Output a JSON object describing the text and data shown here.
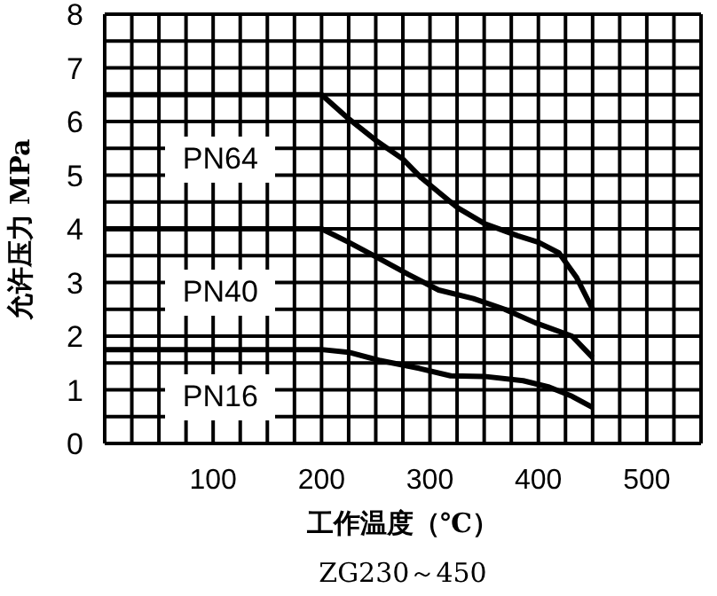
{
  "chart_data": {
    "type": "line",
    "xlabel": "工作温度（℃）",
    "ylabel": "允许压力 MPa",
    "annotations": [
      "ZG230～450"
    ],
    "xlim": [
      0,
      550
    ],
    "xticks": [
      {
        "value": 0,
        "label": null
      },
      {
        "value": 25,
        "label": null
      },
      {
        "value": 50,
        "label": null
      },
      {
        "value": 75,
        "label": null
      },
      100,
      {
        "value": 125,
        "label": null
      },
      {
        "value": 150,
        "label": null
      },
      {
        "value": 175,
        "label": null
      },
      200,
      {
        "value": 225,
        "label": null
      },
      {
        "value": 250,
        "label": null
      },
      {
        "value": 275,
        "label": null
      },
      300,
      {
        "value": 325,
        "label": null
      },
      {
        "value": 350,
        "label": null
      },
      {
        "value": 375,
        "label": null
      },
      400,
      {
        "value": 425,
        "label": null
      },
      {
        "value": 450,
        "label": null
      },
      {
        "value": 475,
        "label": null
      },
      500,
      {
        "value": 525,
        "label": null
      },
      {
        "value": 550,
        "label": null
      }
    ],
    "ylim": [
      0,
      8
    ],
    "yticks": [
      0,
      {
        "value": 0.5,
        "label": null
      },
      1,
      {
        "value": 1.5,
        "label": null
      },
      2,
      {
        "value": 2.5,
        "label": null
      },
      3,
      {
        "value": 3.5,
        "label": null
      },
      4,
      {
        "value": 4.5,
        "label": null
      },
      5,
      {
        "value": 5.5,
        "label": null
      },
      6,
      {
        "value": 6.5,
        "label": null
      },
      7,
      {
        "value": 7.5,
        "label": null
      },
      8
    ],
    "grid": true,
    "marker": "none",
    "line_style": "solid",
    "series": [
      {
        "name": "PN64",
        "color": "#000000",
        "x": [
          0,
          200,
          225,
          250,
          275,
          292,
          325,
          350,
          381,
          400,
          419,
          435,
          450
        ],
        "values": [
          6.5,
          6.5,
          6.05,
          5.65,
          5.3,
          4.95,
          4.4,
          4.1,
          3.87,
          3.75,
          3.55,
          3.1,
          2.5
        ]
      },
      {
        "name": "PN40",
        "color": "#000000",
        "x": [
          0,
          200,
          225,
          253,
          280,
          308,
          340,
          369,
          397,
          431,
          450
        ],
        "values": [
          4.0,
          4.0,
          3.75,
          3.45,
          3.15,
          2.86,
          2.7,
          2.5,
          2.25,
          2.0,
          1.6
        ]
      },
      {
        "name": "PN16",
        "color": "#000000",
        "x": [
          0,
          200,
          225,
          253,
          290,
          319,
          350,
          386,
          410,
          431,
          450
        ],
        "values": [
          1.75,
          1.75,
          1.7,
          1.55,
          1.4,
          1.26,
          1.25,
          1.17,
          1.05,
          0.88,
          0.67
        ]
      }
    ]
  }
}
